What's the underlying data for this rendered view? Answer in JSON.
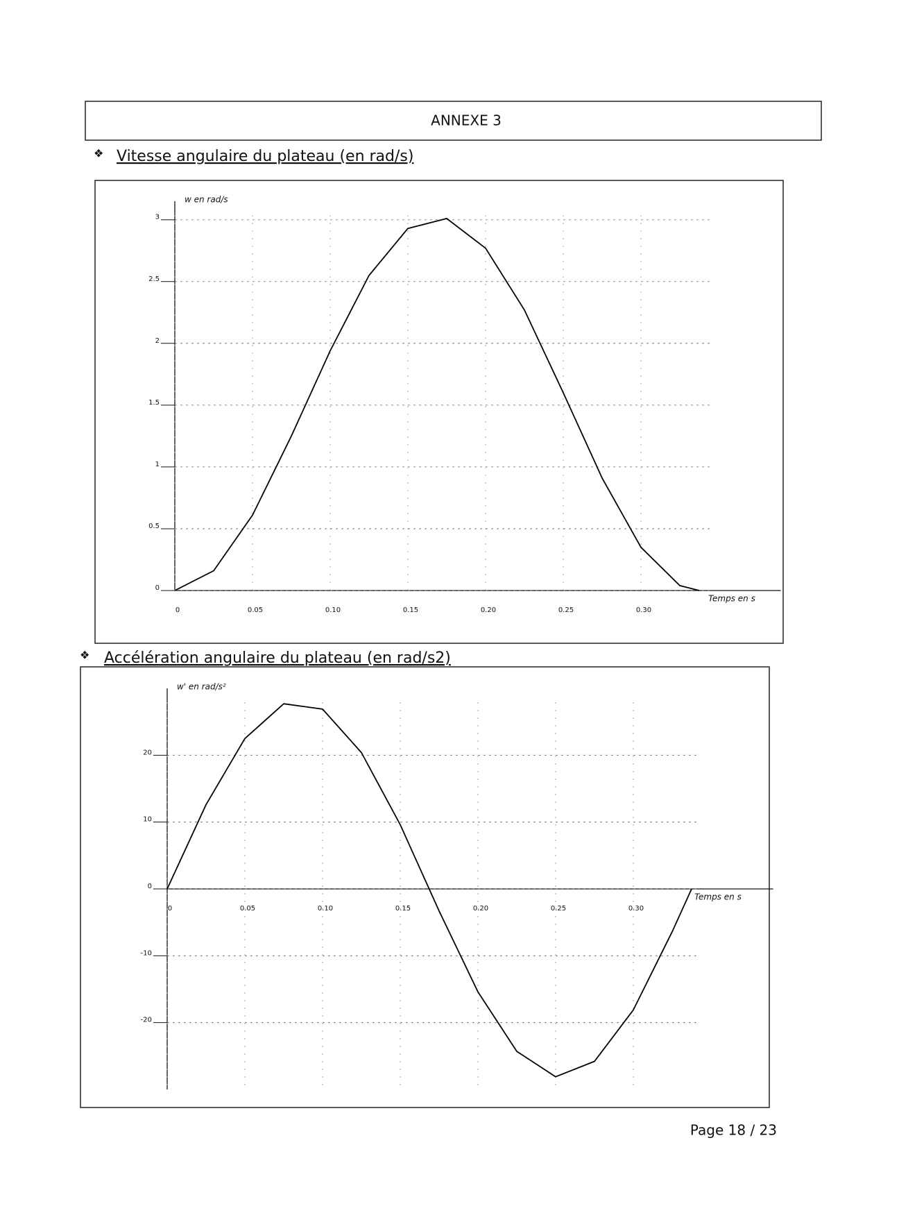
{
  "header": {
    "title": "ANNEXE 3"
  },
  "sections": [
    {
      "heading": "Vitesse angulaire du plateau (en rad/s)"
    },
    {
      "heading": "Accélération angulaire du plateau (en rad/s2)"
    }
  ],
  "chart_data": [
    {
      "type": "line",
      "y_label": "w en rad/s",
      "x_label": "Temps en s",
      "color": "#000000",
      "grid": true,
      "x": [
        0,
        0.025,
        0.05,
        0.075,
        0.1,
        0.125,
        0.15,
        0.175,
        0.2,
        0.225,
        0.25,
        0.275,
        0.3,
        0.325,
        0.3375
      ],
      "values": [
        0,
        0.16,
        0.61,
        1.25,
        1.94,
        2.55,
        2.93,
        3.01,
        2.77,
        2.27,
        1.6,
        0.91,
        0.35,
        0.04,
        0
      ],
      "xlim": [
        0,
        0.39
      ],
      "ylim": [
        0,
        3.15
      ],
      "xticks": [
        0,
        0.05,
        {
          "value": 0.1,
          "label": "0.10"
        },
        0.15,
        {
          "value": 0.2,
          "label": "0.20"
        },
        0.25,
        {
          "value": 0.3,
          "label": "0.30"
        }
      ],
      "yticks": [
        0,
        0.5,
        1,
        1.5,
        2,
        2.5,
        3
      ]
    },
    {
      "type": "line",
      "y_label": "w' en rad/s²",
      "x_label": "Temps en s",
      "color": "#000000",
      "grid": true,
      "x": [
        0,
        0.025,
        0.05,
        0.075,
        0.1,
        0.125,
        0.15,
        0.175,
        0.2,
        0.225,
        0.25,
        0.275,
        0.3,
        0.325,
        0.3375
      ],
      "values": [
        0,
        12.6,
        22.5,
        27.7,
        26.9,
        20.4,
        9.6,
        -3.3,
        -15.4,
        -24.3,
        -28.1,
        -25.8,
        -18.1,
        -6.4,
        0
      ],
      "xlim": [
        0,
        0.39
      ],
      "ylim": [
        -30,
        30
      ],
      "xticks": [
        0,
        0.05,
        {
          "value": 0.1,
          "label": "0.10"
        },
        0.15,
        {
          "value": 0.2,
          "label": "0.20"
        },
        0.25,
        {
          "value": 0.3,
          "label": "0.30"
        }
      ],
      "yticks": [
        -20,
        -10,
        0,
        10,
        20
      ]
    }
  ],
  "footer": {
    "page": "Page 18 / 23"
  }
}
